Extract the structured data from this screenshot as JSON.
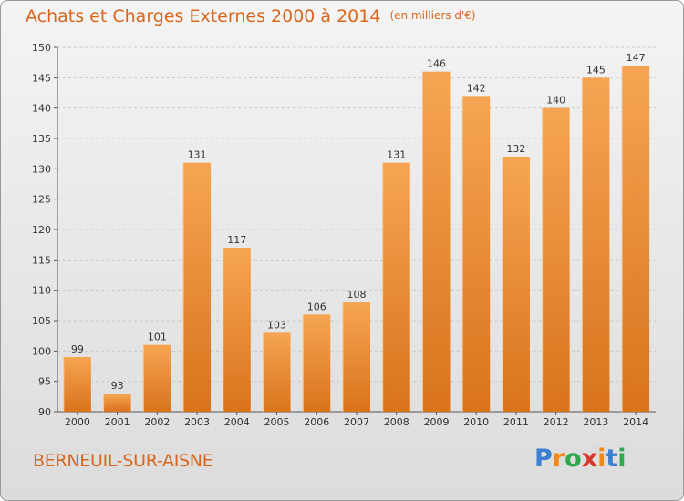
{
  "title": "Achats et Charges Externes 2000 à 2014",
  "unit": "(en milliers d'€)",
  "city": "BERNEUIL-SUR-AISNE",
  "logo": {
    "letters": [
      "P",
      "r",
      "o",
      "x",
      "i",
      "t",
      "i"
    ],
    "colors": [
      "#3a7fd0",
      "#f08a1c",
      "#2fa84f",
      "#d8352b",
      "#f08a1c",
      "#3a7fd0",
      "#2fa84f"
    ]
  },
  "colors": {
    "bar_top": "#f6a552",
    "bar_bottom": "#d9731c",
    "accent": "#d9661c"
  },
  "chart_data": {
    "type": "bar",
    "categories": [
      "2000",
      "2001",
      "2002",
      "2003",
      "2004",
      "2005",
      "2006",
      "2007",
      "2008",
      "2009",
      "2010",
      "2011",
      "2012",
      "2013",
      "2014"
    ],
    "values": [
      99,
      93,
      101,
      131,
      117,
      103,
      106,
      108,
      131,
      146,
      142,
      132,
      140,
      145,
      147
    ],
    "ylim": [
      90,
      150
    ],
    "yticks": [
      90,
      95,
      100,
      105,
      110,
      115,
      120,
      125,
      130,
      135,
      140,
      145,
      150
    ],
    "grid": true,
    "title": "Achats et Charges Externes 2000 à 2014",
    "xlabel": "",
    "ylabel": ""
  }
}
